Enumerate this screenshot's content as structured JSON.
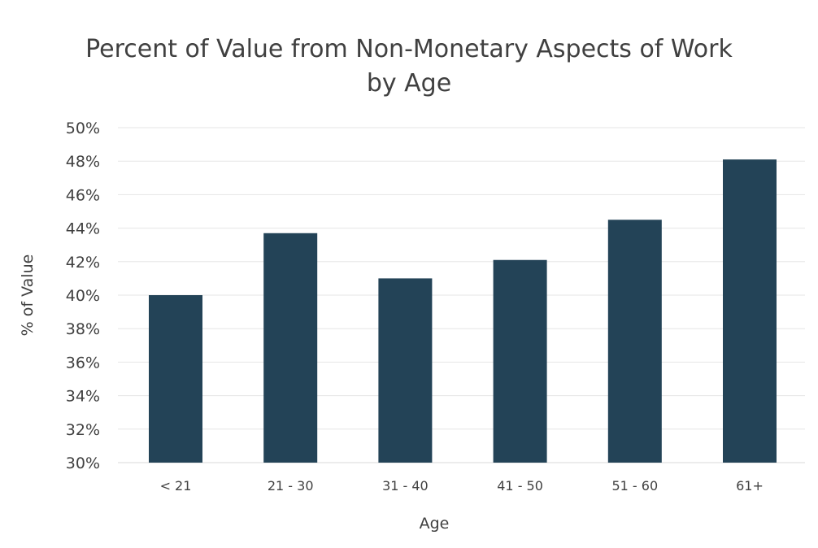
{
  "chart_data": {
    "type": "bar",
    "title_line1": "Percent of Value from Non-Monetary Aspects of Work",
    "title_line2": "by Age",
    "xlabel": "Age",
    "ylabel": "% of Value",
    "categories": [
      "< 21",
      "21 - 30",
      "31 - 40",
      "41 - 50",
      "51 - 60",
      "61+"
    ],
    "values": [
      40.0,
      43.7,
      41.0,
      42.1,
      44.5,
      48.1
    ],
    "ylim": [
      30,
      50
    ],
    "yticks": [
      30,
      32,
      34,
      36,
      38,
      40,
      42,
      44,
      46,
      48,
      50
    ],
    "ytick_suffix": "%",
    "grid": true,
    "legend": "none"
  },
  "colors": {
    "bar": "#234357",
    "grid": "#e6e6e6",
    "axis": "#d9d9d9",
    "text": "#404040"
  }
}
